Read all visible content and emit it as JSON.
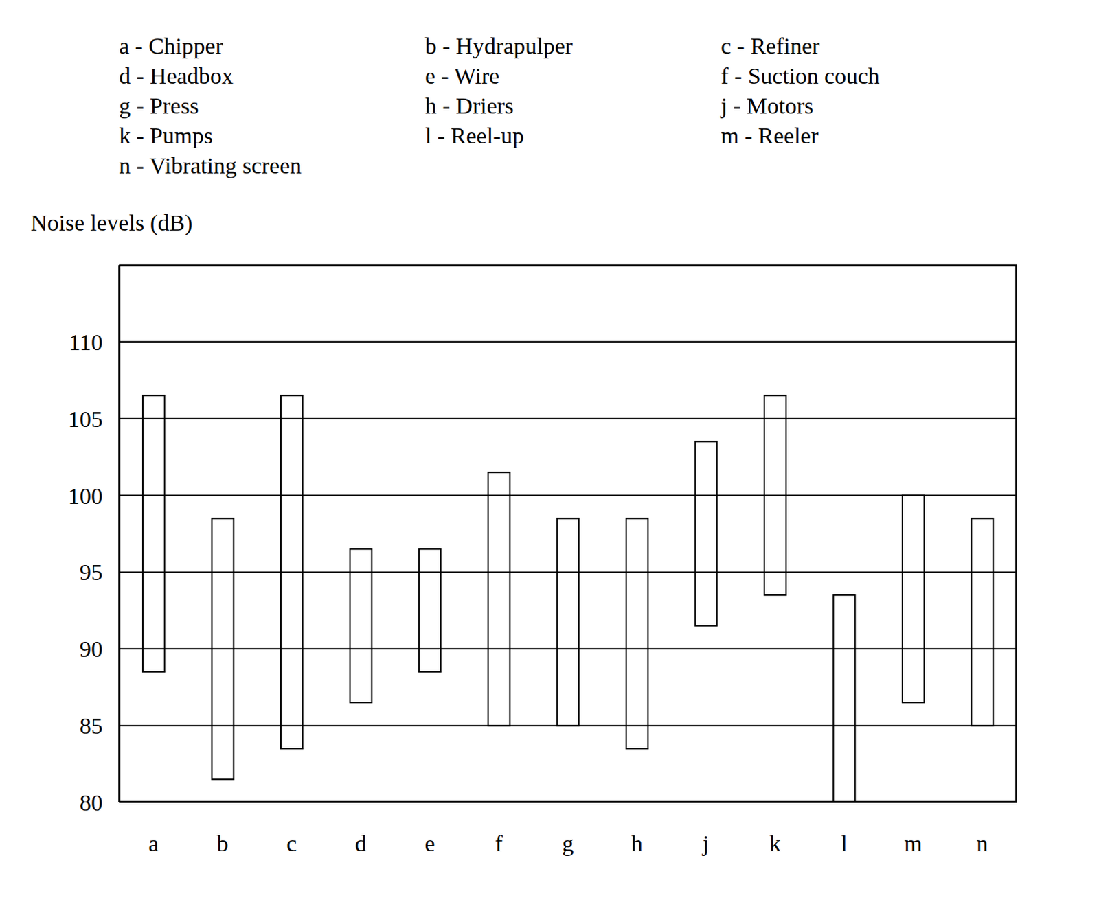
{
  "chart_data": {
    "type": "bar",
    "annotations": [
      "a - Chipper",
      "b - Hydrapulper",
      "c - Refiner",
      "d - Headbox",
      "e - Wire",
      "f - Suction couch",
      "g - Press",
      "h - Driers",
      "j - Motors",
      "k - Pumps",
      "l - Reel-up",
      "m - Reeler",
      "n - Vibrating screen"
    ],
    "y_label": "Noise levels (dB)",
    "categories": [
      "a",
      "b",
      "c",
      "d",
      "e",
      "f",
      "g",
      "h",
      "j",
      "k",
      "l",
      "m",
      "n"
    ],
    "values": [
      [
        88.5,
        106.5
      ],
      [
        81.5,
        98.5
      ],
      [
        83.5,
        106.5
      ],
      [
        86.5,
        96.5
      ],
      [
        88.5,
        96.5
      ],
      [
        85,
        101.5
      ],
      [
        85,
        98.5
      ],
      [
        83.5,
        98.5
      ],
      [
        91.5,
        103.5
      ],
      [
        93.5,
        106.5
      ],
      [
        80,
        93.5
      ],
      [
        86.5,
        100
      ],
      [
        85,
        98.5
      ]
    ],
    "color": "#000000",
    "ylim": [
      80,
      115
    ],
    "yticks": [
      80,
      85,
      90,
      95,
      100,
      105,
      110
    ],
    "grid": true
  }
}
